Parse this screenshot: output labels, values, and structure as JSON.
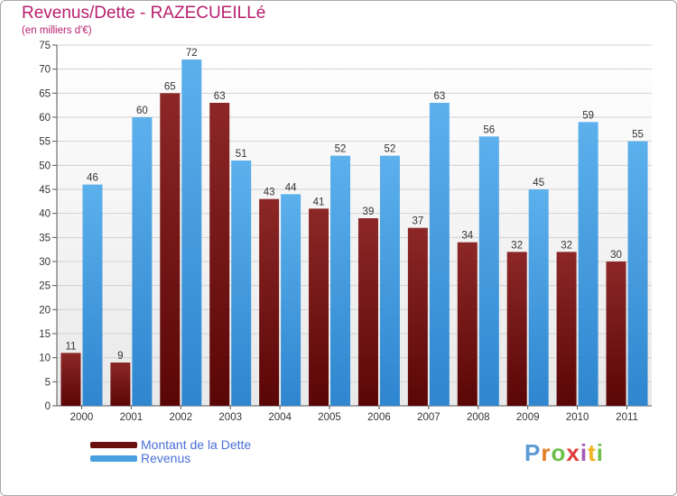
{
  "title": "Revenus/Dette - RAZECUEILLé",
  "subtitle": "(en milliers d'€)",
  "legend": {
    "debt_label": "Montant de la Dette",
    "revenue_label": "Revenus"
  },
  "logo_text": "Proxiti",
  "colors": {
    "debt": "#7a1616",
    "revenue": "#4a9fe0",
    "title": "#b8206e",
    "legend_text": "#4a6fd8"
  },
  "chart_data": {
    "type": "bar",
    "title": "Revenus/Dette - RAZECUEILLé",
    "subtitle": "(en milliers d'€)",
    "categories": [
      "2000",
      "2001",
      "2002",
      "2003",
      "2004",
      "2005",
      "2006",
      "2007",
      "2008",
      "2009",
      "2010",
      "2011"
    ],
    "series": [
      {
        "name": "Montant de la Dette",
        "values": [
          11,
          9,
          65,
          63,
          43,
          41,
          39,
          37,
          34,
          32,
          32,
          30
        ]
      },
      {
        "name": "Revenus",
        "values": [
          46,
          60,
          72,
          51,
          44,
          52,
          52,
          63,
          56,
          45,
          59,
          55
        ]
      }
    ],
    "ylim": [
      0,
      75
    ],
    "yticks": [
      0,
      5,
      10,
      15,
      20,
      25,
      30,
      35,
      40,
      45,
      50,
      55,
      60,
      65,
      70,
      75
    ],
    "grid": true,
    "legend_position": "bottom-left"
  }
}
